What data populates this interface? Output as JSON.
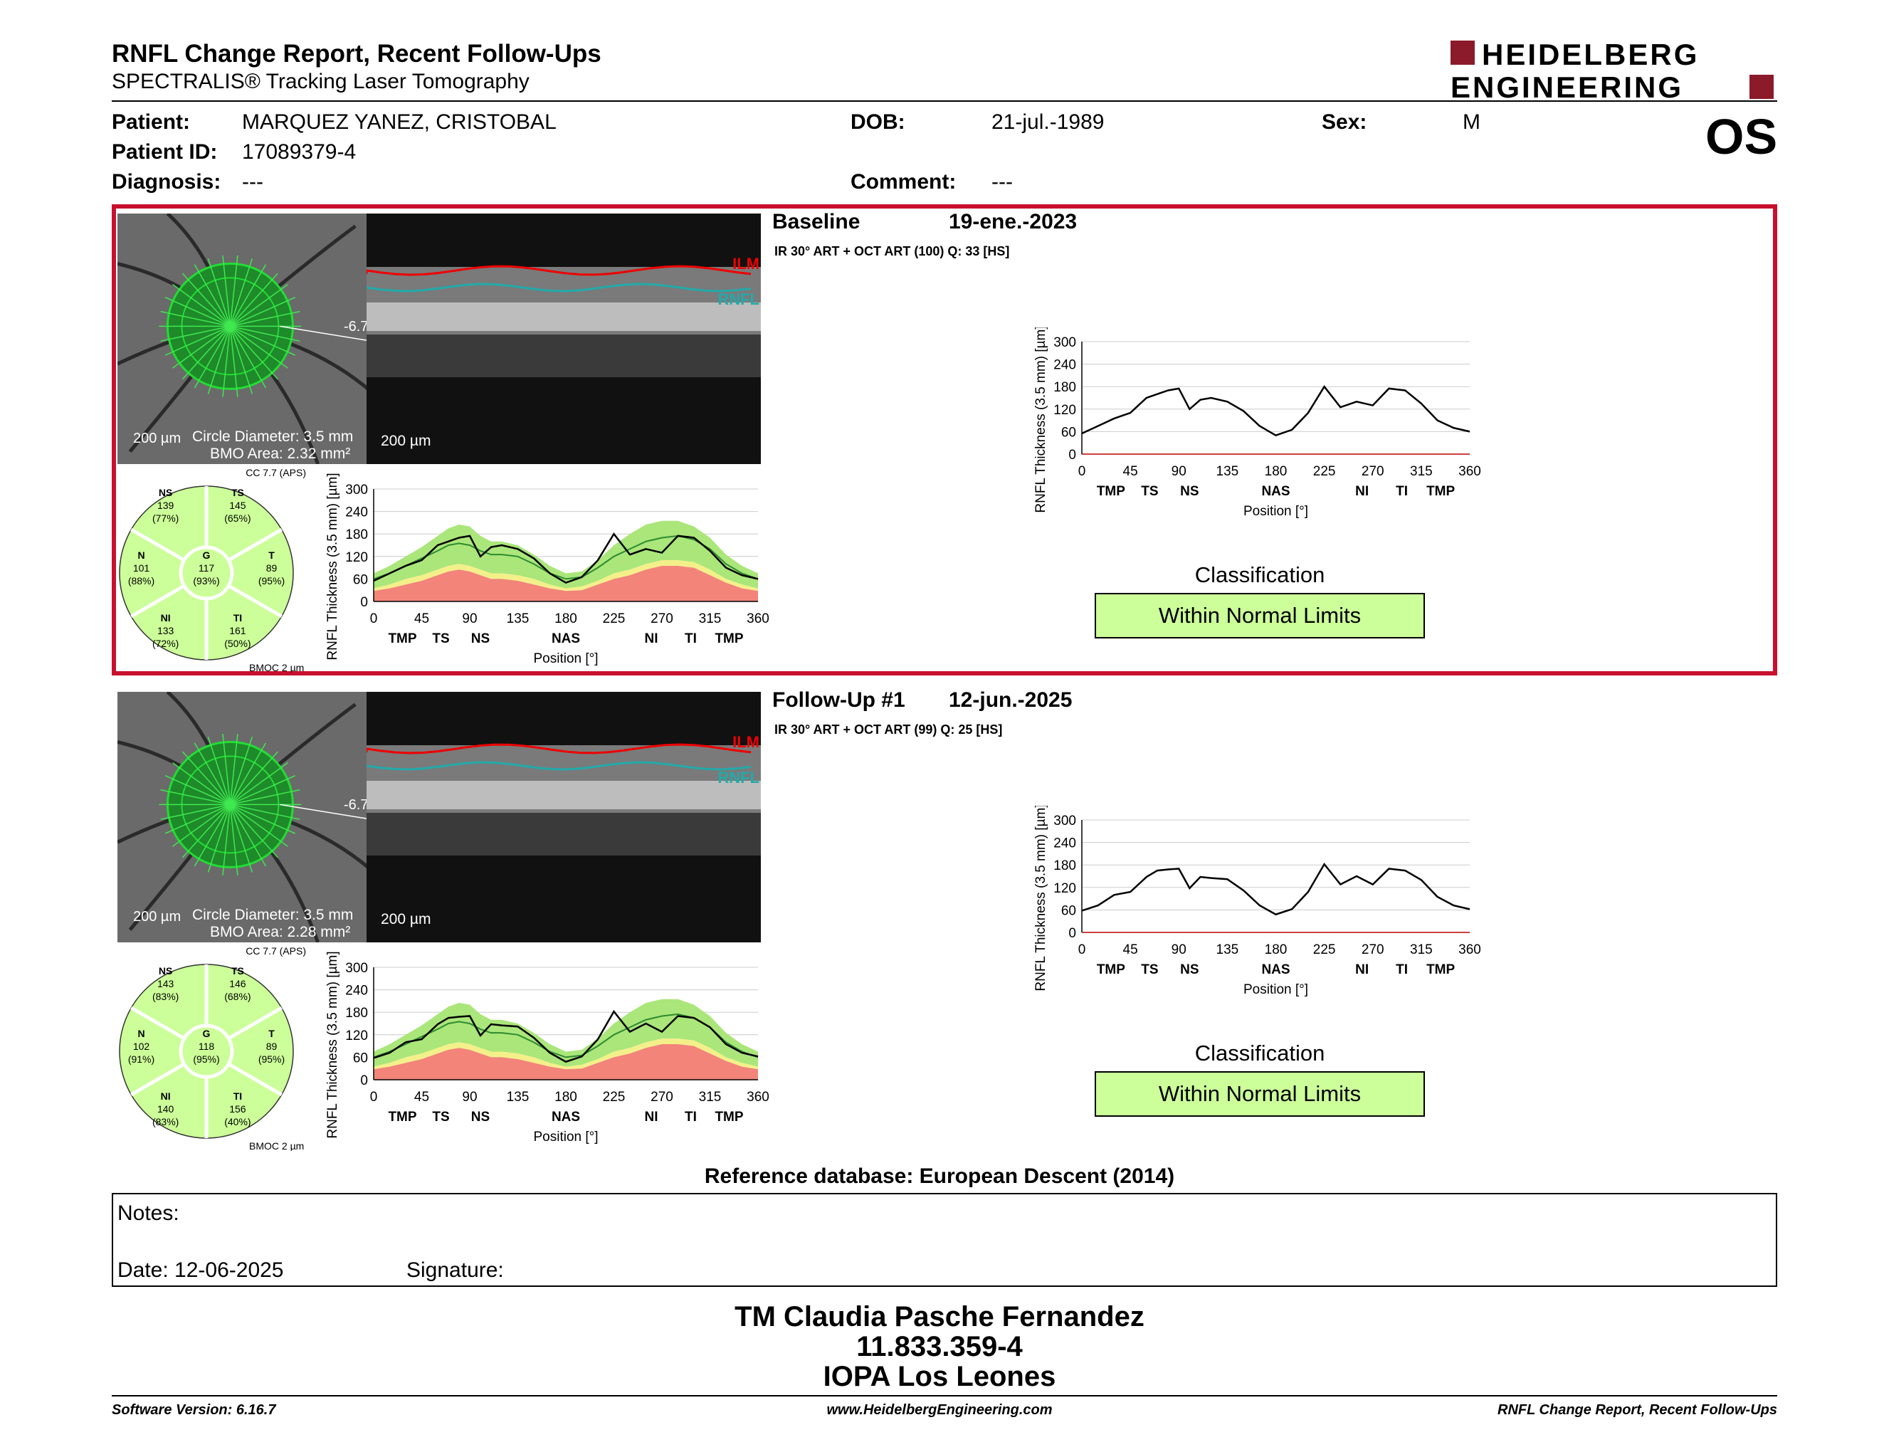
{
  "header": {
    "title": "RNFL Change Report, Recent Follow-Ups",
    "subtitle": "SPECTRALIS® Tracking Laser Tomography",
    "logo_line1": "HEIDELBERG",
    "logo_line2": "ENGINEERING",
    "eye": "OS"
  },
  "patient": {
    "patient_label": "Patient:",
    "patient_value": "MARQUEZ YANEZ, CRISTOBAL",
    "dob_label": "DOB:",
    "dob_value": "21-jul.-1989",
    "sex_label": "Sex:",
    "sex_value": "M",
    "id_label": "Patient ID:",
    "id_value": "17089379-4",
    "diagnosis_label": "Diagnosis:",
    "diagnosis_value": "---",
    "comment_label": "Comment:",
    "comment_value": "---"
  },
  "exams": [
    {
      "label": "Baseline",
      "date": "19-ene.-2023",
      "scan_info": "IR 30° ART + OCT ART (100) Q: 33 [HS]",
      "scale_fundus": "200 µm",
      "circle_diameter": "Circle Diameter: 3.5 mm",
      "bmo_area": "BMO Area: 2.32 mm²",
      "scale_bscan": "200 µm",
      "ilm": "ILM",
      "rnfl": "RNFL",
      "angle": "-6.7",
      "cc": "CC 7.7 (APS)",
      "bmoc": "BMOC 2 µm",
      "sectors": {
        "NS": {
          "v": "139",
          "p": "(77%)"
        },
        "TS": {
          "v": "145",
          "p": "(65%)"
        },
        "N": {
          "v": "101",
          "p": "(88%)"
        },
        "G": {
          "v": "117",
          "p": "(93%)"
        },
        "T": {
          "v": "89",
          "p": "(95%)"
        },
        "NI": {
          "v": "133",
          "p": "(72%)"
        },
        "TI": {
          "v": "161",
          "p": "(50%)"
        }
      },
      "classification_label": "Classification",
      "classification": "Within Normal Limits"
    },
    {
      "label": "Follow-Up #1",
      "date": "12-jun.-2025",
      "scan_info": "IR 30° ART + OCT ART (99) Q: 25 [HS]",
      "scale_fundus": "200 µm",
      "circle_diameter": "Circle Diameter: 3.5 mm",
      "bmo_area": "BMO Area: 2.28 mm²",
      "scale_bscan": "200 µm",
      "ilm": "ILM",
      "rnfl": "RNFL",
      "angle": "-6.7",
      "cc": "CC 7.7 (APS)",
      "bmoc": "BMOC 2 µm",
      "sectors": {
        "NS": {
          "v": "143",
          "p": "(83%)"
        },
        "TS": {
          "v": "146",
          "p": "(68%)"
        },
        "N": {
          "v": "102",
          "p": "(91%)"
        },
        "G": {
          "v": "118",
          "p": "(95%)"
        },
        "T": {
          "v": "89",
          "p": "(95%)"
        },
        "NI": {
          "v": "140",
          "p": "(83%)"
        },
        "TI": {
          "v": "156",
          "p": "(40%)"
        }
      },
      "classification_label": "Classification",
      "classification": "Within Normal Limits"
    }
  ],
  "chart_data": {
    "type": "line",
    "ylabel": "RNFL Thickness (3.5 mm) [µm]",
    "xlabel": "Position [°]",
    "ylim": [
      0,
      300
    ],
    "xlim": [
      0,
      360
    ],
    "yticks": [
      "0",
      "60",
      "120",
      "180",
      "240",
      "300"
    ],
    "xticks": [
      "0",
      "45",
      "90",
      "135",
      "180",
      "225",
      "270",
      "315",
      "360"
    ],
    "sector_labels": [
      "TMP",
      "TS",
      "NS",
      "NAS",
      "NI",
      "TI",
      "TMP"
    ],
    "x": [
      0,
      15,
      30,
      45,
      60,
      70,
      80,
      90,
      100,
      110,
      120,
      135,
      150,
      165,
      180,
      195,
      210,
      225,
      240,
      255,
      270,
      285,
      300,
      315,
      330,
      345,
      360
    ],
    "series": [
      {
        "values": [
          55,
          75,
          95,
          110,
          150,
          160,
          170,
          175,
          120,
          145,
          150,
          140,
          115,
          75,
          50,
          65,
          110,
          180,
          125,
          140,
          130,
          175,
          170,
          135,
          90,
          70,
          60
        ]
      },
      {
        "values": [
          58,
          72,
          100,
          108,
          148,
          165,
          168,
          170,
          118,
          148,
          145,
          142,
          112,
          72,
          48,
          62,
          108,
          182,
          128,
          150,
          128,
          170,
          165,
          140,
          95,
          72,
          62
        ]
      }
    ],
    "normative_mean": [
      60,
      75,
      95,
      115,
      135,
      150,
      155,
      150,
      135,
      125,
      125,
      120,
      100,
      75,
      60,
      65,
      90,
      120,
      140,
      160,
      170,
      175,
      165,
      140,
      100,
      75,
      60
    ],
    "normative_upper": [
      75,
      95,
      120,
      145,
      175,
      195,
      205,
      200,
      175,
      160,
      160,
      150,
      125,
      95,
      75,
      80,
      110,
      150,
      180,
      205,
      215,
      215,
      200,
      170,
      125,
      95,
      75
    ],
    "normative_lower5": [
      35,
      45,
      60,
      70,
      85,
      95,
      100,
      95,
      85,
      75,
      75,
      70,
      60,
      45,
      35,
      40,
      55,
      75,
      85,
      100,
      110,
      110,
      105,
      85,
      60,
      45,
      35
    ],
    "normative_lower1": [
      28,
      35,
      45,
      55,
      70,
      80,
      85,
      80,
      70,
      60,
      60,
      55,
      45,
      35,
      28,
      30,
      45,
      60,
      70,
      85,
      95,
      95,
      90,
      70,
      50,
      35,
      28
    ],
    "classification": "Within Normal Limits"
  },
  "reference_db": "Reference database: European Descent (2014)",
  "notes": {
    "notes_label": "Notes:",
    "date_label": "Date: 12-06-2025",
    "signature_label": "Signature:"
  },
  "signature_block": {
    "name": "TM Claudia Pasche Fernandez",
    "id": "11.833.359-4",
    "place": "IOPA Los Leones"
  },
  "footer": {
    "software": "Software Version: 6.16.7",
    "website": "www.HeidelbergEngineering.com",
    "report": "RNFL Change Report, Recent Follow-Ups"
  }
}
